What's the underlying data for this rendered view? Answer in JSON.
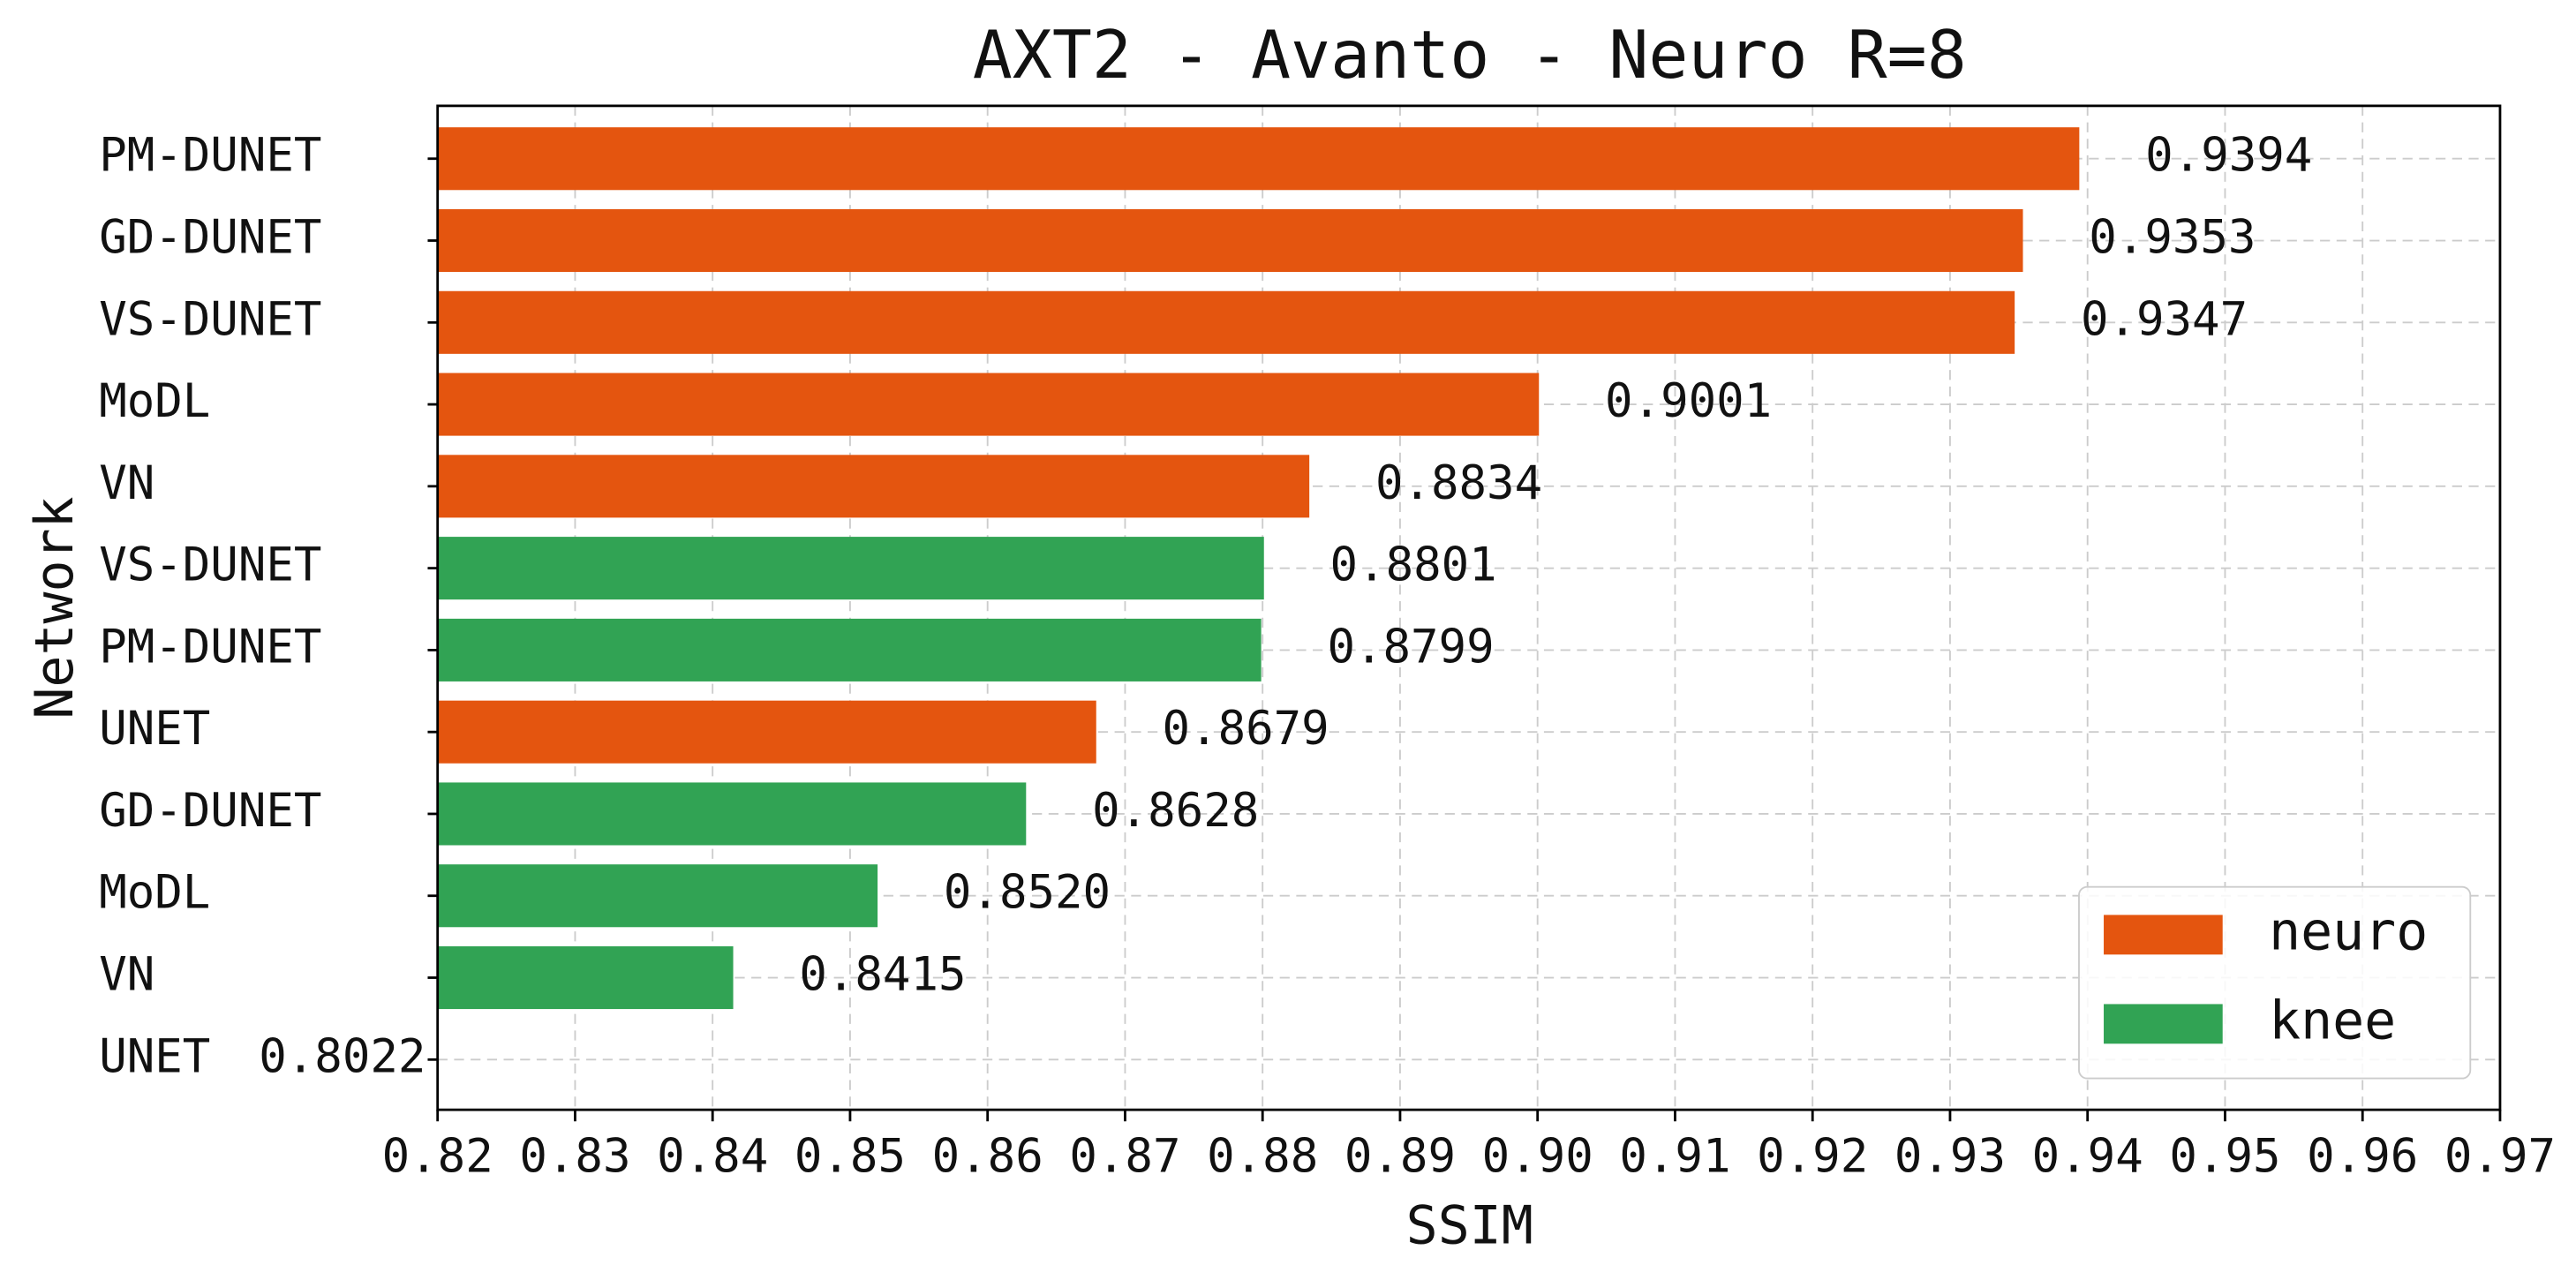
{
  "chart_data": {
    "type": "barh",
    "title": "AXT2 - Avanto - Neuro R=8",
    "xlabel": "SSIM",
    "ylabel": "Network",
    "categories": [
      "PM-DUNET",
      "GD-DUNET",
      "VS-DUNET",
      "MoDL",
      "VN",
      "VS-DUNET",
      "PM-DUNET",
      "UNET",
      "GD-DUNET",
      "MoDL",
      "VN",
      "UNET"
    ],
    "series": [
      {
        "name": "neuro",
        "color": "#e4550f",
        "values": [
          0.9394,
          0.9353,
          0.9347,
          0.9001,
          0.8834,
          null,
          null,
          0.8679,
          null,
          null,
          null,
          null
        ],
        "value_labels": [
          "0.9394",
          "0.9353",
          "0.9347",
          "0.9001",
          "0.8834",
          null,
          null,
          "0.8679",
          null,
          null,
          null,
          null
        ]
      },
      {
        "name": "knee",
        "color": "#31a354",
        "values": [
          null,
          null,
          null,
          null,
          null,
          0.8801,
          0.8799,
          null,
          0.8628,
          0.852,
          0.8415,
          0.8022
        ],
        "value_labels": [
          null,
          null,
          null,
          null,
          null,
          "0.8801",
          "0.8799",
          null,
          "0.8628",
          "0.8520",
          "0.8415",
          "0.8022"
        ]
      }
    ],
    "xlim": [
      0.82,
      0.97
    ],
    "xticks": [
      0.82,
      0.83,
      0.84,
      0.85,
      0.86,
      0.87,
      0.88,
      0.89,
      {
        "value": 0.9,
        "label": "0.90"
      },
      0.91,
      0.92,
      0.93,
      0.94,
      0.95,
      0.96,
      0.97
    ],
    "grid": true,
    "legend": "lower right"
  }
}
